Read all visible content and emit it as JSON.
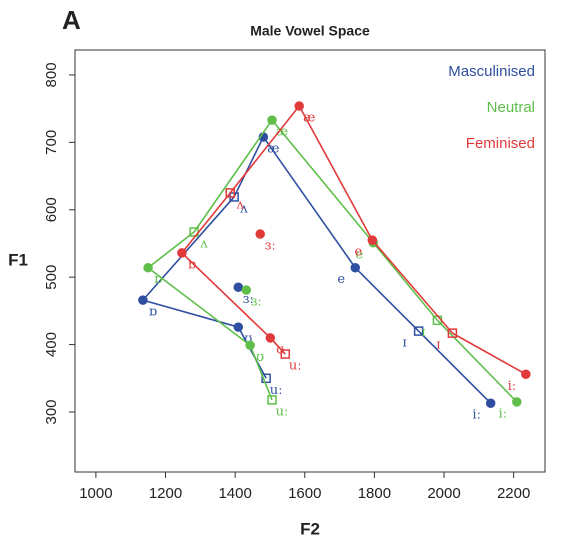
{
  "chart_data": {
    "type": "line",
    "panel_label": "A",
    "title": "Male Vowel Space",
    "x_label": "F2",
    "y_label": "F1",
    "categories": [
      "iː",
      "ɪ",
      "e",
      "æ",
      "ʌ",
      "ɒ",
      "ʊ",
      "uː",
      "ɜː"
    ],
    "series": [
      {
        "name": "Masculinised",
        "color": "#2e4fa0",
        "x": [
          2134,
          1927,
          1745,
          1481,
          1397,
          1135,
          1409,
          1489,
          1409
        ],
        "values": [
          313,
          420,
          514,
          708,
          619,
          466,
          426,
          350,
          485
        ]
      },
      {
        "name": "Neutral",
        "color": "#5fbf4a",
        "x": [
          2209,
          1981,
          1797,
          1506,
          1282,
          1150,
          1443,
          1506,
          1432
        ],
        "values": [
          315,
          436,
          551,
          733,
          567,
          514,
          399,
          318,
          481
        ]
      },
      {
        "name": "Feminised",
        "color": "#e03a3a",
        "x": [
          2235,
          2024,
          1794,
          1584,
          1386,
          1247,
          1501,
          1544,
          1472
        ],
        "values": [
          356,
          417,
          555,
          754,
          625,
          536,
          410,
          386,
          564
        ]
      }
    ],
    "xlim": [
      940,
      2290
    ],
    "ylim": [
      211,
      837
    ],
    "xticks": [
      1000,
      1200,
      1400,
      1600,
      1800,
      2000,
      2200
    ],
    "yticks": [
      300,
      400,
      500,
      600,
      700,
      800
    ],
    "legend": "top-right"
  }
}
